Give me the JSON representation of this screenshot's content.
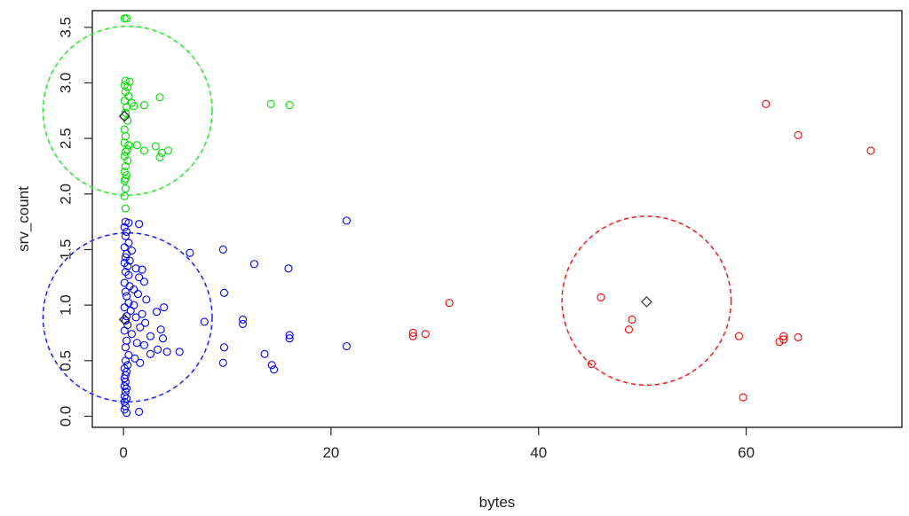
{
  "chart_data": {
    "type": "scatter",
    "title": "",
    "xlabel": "bytes",
    "ylabel": "srv_count",
    "xlim": [
      -3,
      75
    ],
    "ylim": [
      -0.1,
      3.65
    ],
    "x_ticks": [
      0,
      20,
      40,
      60
    ],
    "y_ticks": [
      0.0,
      0.5,
      1.0,
      1.5,
      2.0,
      2.5,
      3.0,
      3.5
    ],
    "y_tick_labels": [
      "0.0",
      "0.5",
      "1.0",
      "1.5",
      "2.0",
      "2.5",
      "3.0",
      "3.5"
    ],
    "grid": false,
    "legend": "none",
    "series": [
      {
        "color": "#00dd00",
        "points": [
          [
            0.1,
            3.58
          ],
          [
            0.3,
            3.58
          ],
          [
            0.2,
            3.02
          ],
          [
            0.6,
            3.01
          ],
          [
            0.1,
            2.98
          ],
          [
            0.4,
            2.96
          ],
          [
            0.2,
            2.92
          ],
          [
            0.5,
            2.88
          ],
          [
            0.1,
            2.84
          ],
          [
            0.8,
            2.82
          ],
          [
            1.0,
            2.79
          ],
          [
            0.3,
            2.78
          ],
          [
            2.0,
            2.8
          ],
          [
            3.5,
            2.87
          ],
          [
            0.2,
            2.73
          ],
          [
            0.4,
            2.66
          ],
          [
            0.1,
            2.58
          ],
          [
            0.2,
            2.52
          ],
          [
            0.1,
            2.46
          ],
          [
            0.5,
            2.44
          ],
          [
            1.3,
            2.44
          ],
          [
            3.1,
            2.43
          ],
          [
            0.4,
            2.4
          ],
          [
            0.2,
            2.38
          ],
          [
            2.0,
            2.39
          ],
          [
            3.7,
            2.37
          ],
          [
            4.3,
            2.39
          ],
          [
            3.5,
            2.33
          ],
          [
            0.1,
            2.34
          ],
          [
            0.4,
            2.3
          ],
          [
            0.2,
            2.25
          ],
          [
            0.1,
            2.2
          ],
          [
            0.3,
            2.17
          ],
          [
            0.2,
            2.14
          ],
          [
            0.1,
            2.12
          ],
          [
            0.2,
            2.05
          ],
          [
            0.1,
            1.98
          ],
          [
            0.2,
            1.87
          ],
          [
            14.2,
            2.81
          ],
          [
            16.0,
            2.8
          ]
        ]
      },
      {
        "color": "#0000ff",
        "points": [
          [
            0.2,
            1.75
          ],
          [
            0.5,
            1.74
          ],
          [
            1.5,
            1.73
          ],
          [
            0.1,
            1.7
          ],
          [
            0.3,
            1.66
          ],
          [
            0.2,
            1.62
          ],
          [
            0.5,
            1.56
          ],
          [
            0.1,
            1.52
          ],
          [
            0.8,
            1.49
          ],
          [
            0.3,
            1.46
          ],
          [
            0.2,
            1.43
          ],
          [
            0.6,
            1.4
          ],
          [
            0.1,
            1.38
          ],
          [
            0.4,
            1.35
          ],
          [
            1.2,
            1.33
          ],
          [
            1.8,
            1.32
          ],
          [
            0.2,
            1.3
          ],
          [
            0.5,
            1.27
          ],
          [
            1.5,
            1.25
          ],
          [
            2.0,
            1.21
          ],
          [
            0.1,
            1.2
          ],
          [
            0.6,
            1.17
          ],
          [
            1.0,
            1.14
          ],
          [
            0.2,
            1.12
          ],
          [
            1.4,
            1.1
          ],
          [
            0.3,
            1.08
          ],
          [
            2.2,
            1.05
          ],
          [
            0.5,
            1.02
          ],
          [
            1.0,
            1.0
          ],
          [
            0.1,
            0.98
          ],
          [
            3.9,
            0.98
          ],
          [
            3.2,
            0.94
          ],
          [
            0.7,
            0.95
          ],
          [
            1.8,
            0.92
          ],
          [
            0.3,
            0.9
          ],
          [
            1.2,
            0.89
          ],
          [
            0.2,
            0.86
          ],
          [
            2.1,
            0.84
          ],
          [
            0.4,
            0.82
          ],
          [
            1.6,
            0.8
          ],
          [
            3.6,
            0.78
          ],
          [
            0.1,
            0.77
          ],
          [
            0.8,
            0.74
          ],
          [
            2.6,
            0.72
          ],
          [
            3.8,
            0.7
          ],
          [
            0.3,
            0.68
          ],
          [
            1.3,
            0.66
          ],
          [
            2.0,
            0.64
          ],
          [
            0.2,
            0.62
          ],
          [
            3.3,
            0.6
          ],
          [
            4.2,
            0.58
          ],
          [
            2.6,
            0.56
          ],
          [
            0.5,
            0.55
          ],
          [
            1.1,
            0.52
          ],
          [
            0.2,
            0.5
          ],
          [
            1.6,
            0.48
          ],
          [
            0.4,
            0.46
          ],
          [
            0.1,
            0.43
          ],
          [
            0.3,
            0.4
          ],
          [
            0.2,
            0.37
          ],
          [
            0.1,
            0.34
          ],
          [
            0.2,
            0.31
          ],
          [
            0.1,
            0.27
          ],
          [
            0.3,
            0.25
          ],
          [
            0.2,
            0.22
          ],
          [
            0.1,
            0.18
          ],
          [
            0.3,
            0.16
          ],
          [
            0.1,
            0.13
          ],
          [
            0.2,
            0.09
          ],
          [
            0.1,
            0.06
          ],
          [
            0.3,
            0.03
          ],
          [
            1.5,
            0.04
          ],
          [
            5.4,
            0.58
          ],
          [
            6.4,
            1.47
          ],
          [
            7.8,
            0.85
          ],
          [
            9.6,
            1.5
          ],
          [
            9.7,
            1.11
          ],
          [
            9.7,
            0.62
          ],
          [
            9.6,
            0.48
          ],
          [
            11.5,
            0.87
          ],
          [
            11.5,
            0.83
          ],
          [
            12.6,
            1.37
          ],
          [
            13.6,
            0.56
          ],
          [
            14.3,
            0.46
          ],
          [
            14.5,
            0.42
          ],
          [
            15.9,
            1.33
          ],
          [
            16.0,
            0.73
          ],
          [
            16.0,
            0.7
          ],
          [
            21.5,
            1.76
          ],
          [
            21.5,
            0.63
          ]
        ]
      },
      {
        "color": "#ff0000",
        "points": [
          [
            27.9,
            0.75
          ],
          [
            27.9,
            0.72
          ],
          [
            29.1,
            0.74
          ],
          [
            31.4,
            1.02
          ],
          [
            45.1,
            0.47
          ],
          [
            46.0,
            1.07
          ],
          [
            48.7,
            0.78
          ],
          [
            49.0,
            0.87
          ],
          [
            59.3,
            0.72
          ],
          [
            59.7,
            0.17
          ],
          [
            61.9,
            2.81
          ],
          [
            63.2,
            0.67
          ],
          [
            63.6,
            0.72
          ],
          [
            63.6,
            0.69
          ],
          [
            65.0,
            0.71
          ],
          [
            65.0,
            2.53
          ],
          [
            72.0,
            2.39
          ]
        ]
      }
    ],
    "centers": [
      {
        "x": 0.1,
        "y": 2.7,
        "color": "#222222"
      },
      {
        "x": 0.1,
        "y": 0.87,
        "color": "#222222"
      },
      {
        "x": 50.4,
        "y": 1.03,
        "color": "#444444"
      }
    ],
    "circles": [
      {
        "cx": 0.4,
        "cy": 2.75,
        "r_units_y": 0.76,
        "color": "#22ee22"
      },
      {
        "cx": 0.4,
        "cy": 0.89,
        "r_units_y": 0.76,
        "color": "#1a1aee"
      },
      {
        "cx": 50.4,
        "cy": 1.04,
        "r_units_y": 0.76,
        "color": "#ee1a1a"
      }
    ]
  }
}
